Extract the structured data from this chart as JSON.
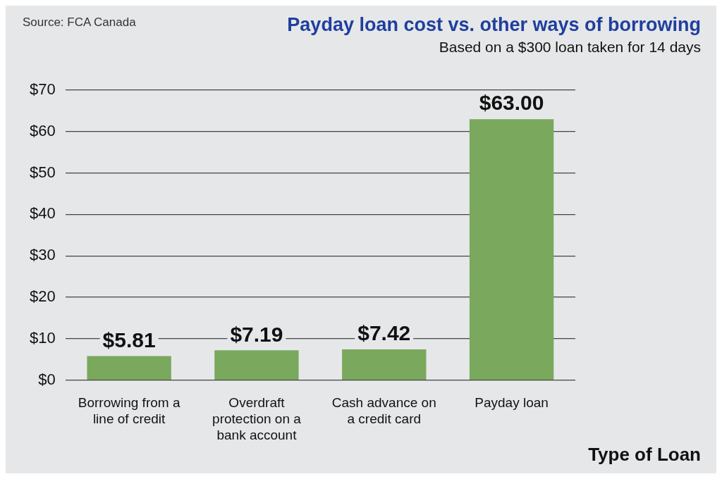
{
  "chart_data": {
    "type": "bar",
    "title": "Payday loan cost vs. other ways of borrowing",
    "subtitle": "Based on a $300 loan taken for 14 days",
    "xlabel": "Type of Loan",
    "annotations": [
      "Source: FCA Canada"
    ],
    "categories": [
      "Borrowing from a line of credit",
      "Overdraft protection on a bank account",
      "Cash advance on a credit card",
      "Payday loan"
    ],
    "values": [
      5.81,
      7.19,
      7.42,
      63.0
    ],
    "color": "#7aa85c",
    "value_labels": [
      "$5.81",
      "$7.19",
      "$7.42",
      "$63.00"
    ],
    "ylim": [
      0,
      70
    ],
    "yticks": [
      {
        "value": 0,
        "label": "$0"
      },
      {
        "value": 10,
        "label": "$10"
      },
      {
        "value": 20,
        "label": "$20"
      },
      {
        "value": 30,
        "label": "$30"
      },
      {
        "value": 40,
        "label": "$40"
      },
      {
        "value": 50,
        "label": "$50"
      },
      {
        "value": 60,
        "label": "$60"
      },
      {
        "value": 70,
        "label": "$70"
      }
    ],
    "grid": "y"
  }
}
